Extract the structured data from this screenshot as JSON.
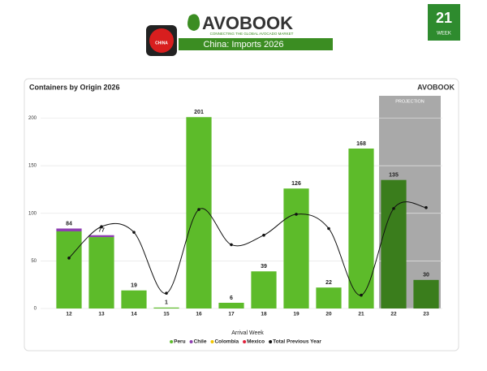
{
  "header": {
    "logo": "AVOBOOK",
    "tagline": "CONNECTING THE GLOBAL AVOCADO MARKET",
    "subtitle": "China: Imports 2026",
    "flag_label": "CHINA",
    "week": "21",
    "week_label": "WEEK"
  },
  "chart_data": {
    "type": "bar",
    "stacked": true,
    "title": "Containers by Origin 2026",
    "x_label": "Arrival Week",
    "categories": [
      "12",
      "13",
      "14",
      "15",
      "16",
      "17",
      "18",
      "19",
      "20",
      "21",
      "22",
      "23"
    ],
    "series": [
      {
        "name": "Peru",
        "color": "#5dbb2a",
        "projection_color": "#3a7d1c",
        "values": [
          81,
          75,
          19,
          1,
          201,
          6,
          39,
          126,
          22,
          168,
          135,
          30
        ]
      },
      {
        "name": "Chile",
        "color": "#8e3fb0",
        "values": [
          3,
          2,
          0,
          0,
          0,
          0,
          0,
          0,
          0,
          0,
          0,
          0
        ]
      },
      {
        "name": "Colombia",
        "color": "#f2c500",
        "values": [
          0,
          0,
          0,
          0,
          0,
          0,
          0,
          0,
          0,
          0,
          0,
          0
        ]
      },
      {
        "name": "Mexico",
        "color": "#e0203a",
        "values": [
          0,
          0,
          0,
          0,
          0,
          0,
          0,
          0,
          0,
          0,
          0,
          0
        ]
      },
      {
        "name": "Total Previous Year",
        "type": "line",
        "color": "#111111",
        "values": [
          53,
          86,
          80,
          16,
          104,
          67,
          77,
          99,
          84,
          14,
          105,
          106
        ]
      }
    ],
    "totals": [
      "84",
      "77",
      "19",
      "1",
      "201",
      "6",
      "39",
      "126",
      "22",
      "168",
      "135",
      "30"
    ],
    "projection": {
      "label": "PROJECTION",
      "start": "22"
    },
    "ylim": [
      0,
      220
    ],
    "yticks": [
      0,
      50,
      100,
      150,
      200
    ],
    "grid": true
  }
}
